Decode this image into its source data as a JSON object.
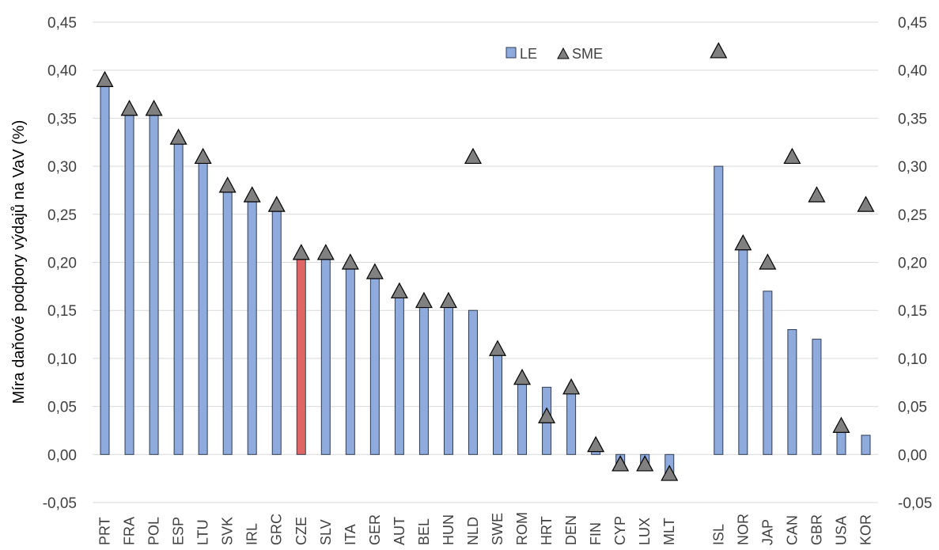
{
  "chart_data": {
    "type": "bar",
    "title": "",
    "xlabel": "",
    "ylabel": "Míra daňové podpory výdajů na VaV (%)",
    "ylim": [
      -0.05,
      0.45
    ],
    "y_ticks": [
      "-0,05",
      "0,00",
      "0,05",
      "0,10",
      "0,15",
      "0,20",
      "0,25",
      "0,30",
      "0,35",
      "0,40",
      "0,45"
    ],
    "y_tick_values": [
      -0.05,
      0,
      0.05,
      0.1,
      0.15,
      0.2,
      0.25,
      0.3,
      0.35,
      0.4,
      0.45
    ],
    "secondary_axis": true,
    "grid": true,
    "legend_position": "top-center",
    "categories": [
      "PRT",
      "FRA",
      "POL",
      "ESP",
      "LTU",
      "SVK",
      "IRL",
      "GRC",
      "CZE",
      "SLV",
      "ITA",
      "GER",
      "AUT",
      "BEL",
      "HUN",
      "NLD",
      "SWE",
      "ROM",
      "HRT",
      "DEN",
      "FIN",
      "CYP",
      "LUX",
      "MLT",
      "",
      "ISL",
      "NOR",
      "JAP",
      "CAN",
      "GBR",
      "USA",
      "KOR"
    ],
    "highlight_category": "CZE",
    "colors": {
      "LE": "#8faadc",
      "highlight": "#e06666",
      "SME": "#808080",
      "edge": "#2f3b52"
    },
    "series": [
      {
        "name": "LE",
        "kind": "bar",
        "values": [
          0.39,
          0.36,
          0.36,
          0.33,
          0.31,
          0.28,
          0.27,
          0.26,
          0.21,
          0.21,
          0.2,
          0.19,
          0.17,
          0.16,
          0.16,
          0.15,
          0.11,
          0.08,
          0.07,
          0.07,
          0.01,
          -0.01,
          -0.01,
          -0.02,
          null,
          0.3,
          0.22,
          0.17,
          0.13,
          0.12,
          0.03,
          0.02
        ]
      },
      {
        "name": "SME",
        "kind": "marker",
        "marker": "triangle",
        "values": [
          0.39,
          0.36,
          0.36,
          0.33,
          0.31,
          0.28,
          0.27,
          0.26,
          0.21,
          0.21,
          0.2,
          0.19,
          0.17,
          0.16,
          0.16,
          0.31,
          0.11,
          0.08,
          0.04,
          0.07,
          0.01,
          -0.01,
          -0.01,
          -0.02,
          null,
          0.42,
          0.22,
          0.2,
          0.31,
          0.27,
          0.03,
          0.26
        ]
      }
    ]
  }
}
